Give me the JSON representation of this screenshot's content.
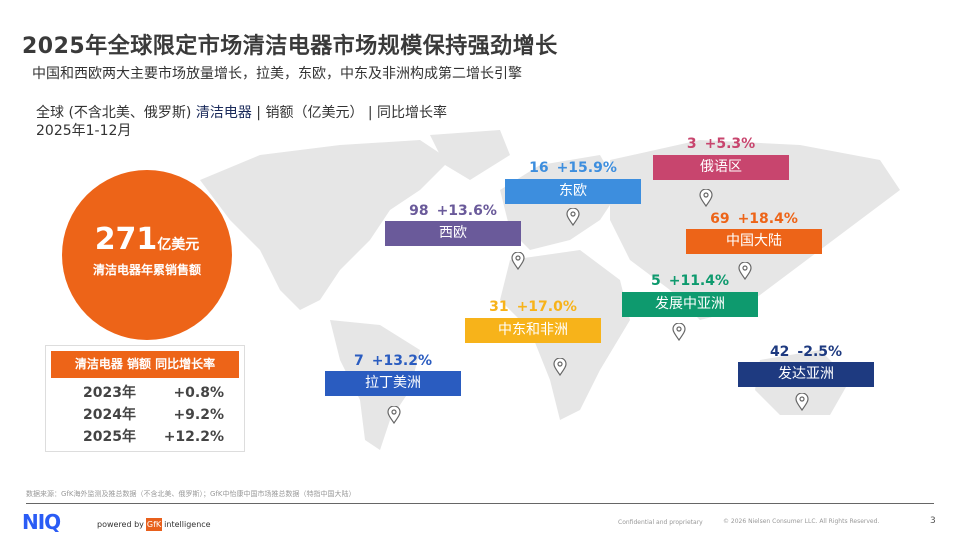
{
  "header": {
    "title": "2025年全球限定市场清洁电器市场规模保持强劲增长",
    "subtitle": "中国和西欧两大主要市场放量增长，拉美，东欧，中东及非洲构成第二增长引擎",
    "scope_prefix": "全球 (不含北美、俄罗斯) ",
    "scope_highlight": "清洁电器",
    "scope_suffix": " | 销额（亿美元） | 同比增长率",
    "period": "2025年1-12月"
  },
  "total": {
    "value": "271",
    "unit": "亿美元",
    "label": "清洁电器年累销售额"
  },
  "growth_table": {
    "header": "清洁电器 销额 同比增长率",
    "rows": [
      {
        "year": "2023年",
        "growth": "+0.8%"
      },
      {
        "year": "2024年",
        "growth": "+9.2%"
      },
      {
        "year": "2025年",
        "growth": "+12.2%"
      }
    ]
  },
  "regions": [
    {
      "name": "西欧",
      "value": "98",
      "growth": "+13.6%",
      "color": "#6a5a9a"
    },
    {
      "name": "东欧",
      "value": "16",
      "growth": "+15.9%",
      "color": "#3d8ede"
    },
    {
      "name": "俄语区",
      "value": "3",
      "growth": "+5.3%",
      "color": "#c8456e"
    },
    {
      "name": "中国大陆",
      "value": "69",
      "growth": "+18.4%",
      "color": "#ed6418"
    },
    {
      "name": "发展中亚洲",
      "value": "5",
      "growth": "+11.4%",
      "color": "#0e9a6e"
    },
    {
      "name": "中东和非洲",
      "value": "31",
      "growth": "+17.0%",
      "color": "#f7b31a"
    },
    {
      "name": "拉丁美洲",
      "value": "7",
      "growth": "+13.2%",
      "color": "#2a5cc0"
    },
    {
      "name": "发达亚洲",
      "value": "42",
      "growth": "-2.5%",
      "color": "#1e3a80"
    }
  ],
  "footer": {
    "source": "数据来源：GfK海外监测及推总数据（不含北美、俄罗斯）；GfK中怡康中国市场推总数据（特指中国大陆）",
    "logo": "NIQ",
    "powered": "powered by",
    "gfk": "GfK",
    "intelligence": "intelligence",
    "confidential": "Confidential and proprietary",
    "copyright": "© 2026 Nielsen Consumer LLC. All Rights Reserved.",
    "page": "3"
  }
}
